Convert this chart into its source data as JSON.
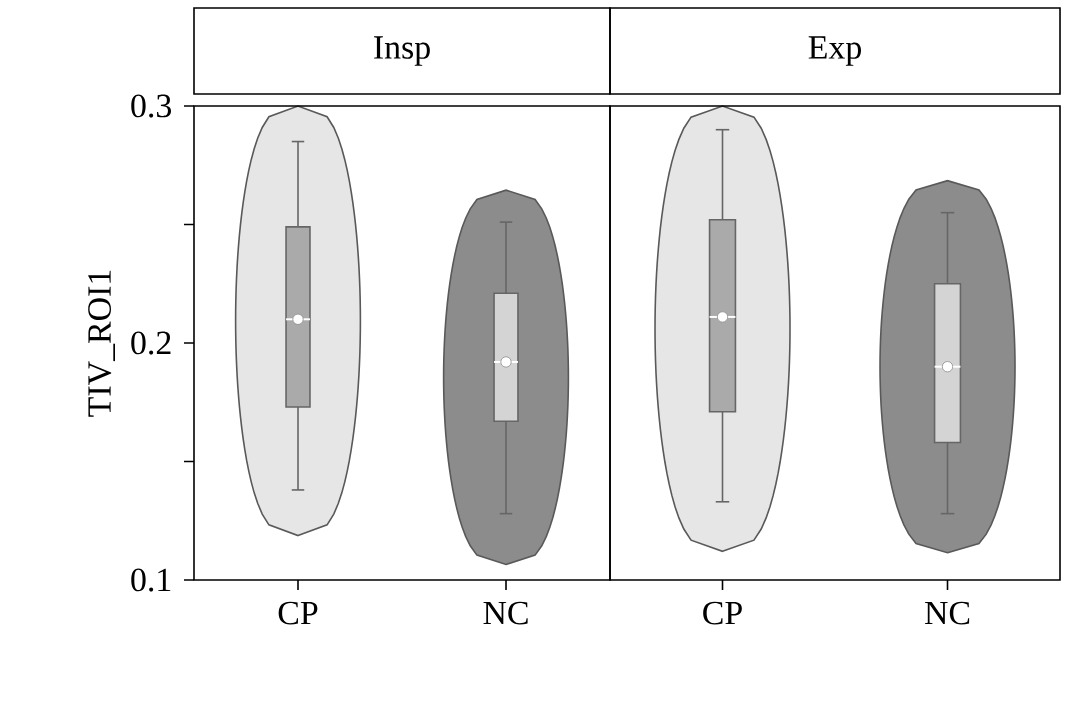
{
  "chart_data": [
    {
      "type": "box",
      "title": "Insp",
      "ylabel": "TIV_ROI1",
      "categories": [
        "CP",
        "NC"
      ],
      "colors": [
        "#aaaaaa",
        "#d4d4d4"
      ],
      "boxes": [
        {
          "low": 0.138,
          "q1": 0.173,
          "median": 0.21,
          "q3": 0.249,
          "high": 0.285
        },
        {
          "low": 0.128,
          "q1": 0.167,
          "median": 0.192,
          "q3": 0.221,
          "high": 0.251
        }
      ],
      "series": [
        {
          "type": "scatter",
          "x": [
            "CP",
            "NC"
          ],
          "values": [
            0.21,
            0.192
          ],
          "color": "#ffffff",
          "marker": "circle"
        }
      ],
      "ylim": [
        0.1,
        0.3
      ],
      "yticks": [
        0.1,
        {
          "value": 0.15,
          "label": null
        },
        0.2,
        {
          "value": 0.25,
          "label": null
        },
        0.3
      ],
      "grid": false
    },
    {
      "type": "box",
      "title": "Exp",
      "categories": [
        "CP",
        "NC"
      ],
      "colors": [
        "#aaaaaa",
        "#d4d4d4"
      ],
      "boxes": [
        {
          "low": 0.133,
          "q1": 0.171,
          "median": 0.211,
          "q3": 0.252,
          "high": 0.29
        },
        {
          "low": 0.128,
          "q1": 0.158,
          "median": 0.19,
          "q3": 0.225,
          "high": 0.255
        }
      ],
      "series": [
        {
          "type": "scatter",
          "x": [
            "CP",
            "NC"
          ],
          "values": [
            0.211,
            0.19
          ],
          "color": "#ffffff",
          "marker": "circle"
        }
      ],
      "ylim": [
        0.1,
        0.3
      ],
      "tick_labels": "x",
      "grid": false
    }
  ]
}
